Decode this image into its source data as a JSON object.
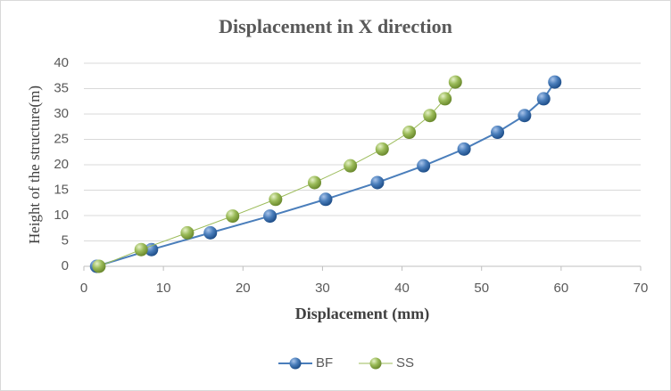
{
  "chart_data": {
    "type": "scatter",
    "title": "Displacement in X direction",
    "x_label": "Displacement (mm)",
    "y_label": "Height of the structure(m)",
    "xlim": [
      0,
      70
    ],
    "xticks": [
      0,
      10,
      20,
      30,
      40,
      50,
      60,
      70
    ],
    "ylim": [
      0,
      40
    ],
    "yticks": [
      0,
      5,
      10,
      15,
      20,
      25,
      30,
      35,
      40
    ],
    "grid": true,
    "legend": "bottom",
    "series": [
      {
        "name": "BF",
        "color": "#4a7ebb",
        "x": [
          1.6,
          8.5,
          15.9,
          23.4,
          30.4,
          36.9,
          42.7,
          47.8,
          52.0,
          55.4,
          57.8,
          59.2
        ],
        "values": [
          0,
          3.3,
          6.6,
          9.9,
          13.2,
          16.5,
          19.8,
          23.1,
          26.4,
          29.7,
          33,
          36.3
        ]
      },
      {
        "name": "SS",
        "color": "#9bbb59",
        "x": [
          1.9,
          7.2,
          13.0,
          18.7,
          24.1,
          29.0,
          33.5,
          37.5,
          40.9,
          43.5,
          45.4,
          46.7
        ],
        "values": [
          0,
          3.3,
          6.6,
          9.9,
          13.2,
          16.5,
          19.8,
          23.1,
          26.4,
          29.7,
          33,
          36.3
        ]
      }
    ]
  }
}
